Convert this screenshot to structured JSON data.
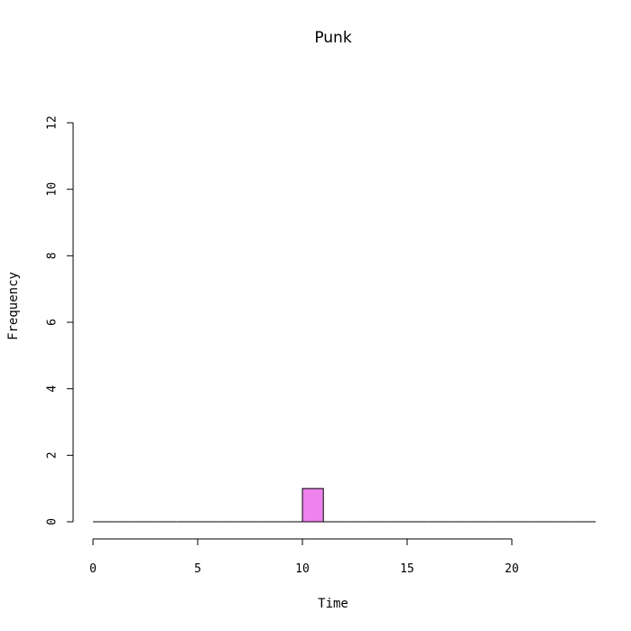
{
  "chart_data": {
    "type": "bar",
    "title": "Punk",
    "xlabel": "Time",
    "ylabel": "Frequency",
    "xlim": [
      -0.5,
      24
    ],
    "ylim": [
      0,
      12
    ],
    "x_axis_ticks": [
      0,
      5,
      10,
      15,
      20
    ],
    "y_axis_ticks": [
      0,
      2,
      4,
      6,
      8,
      10,
      12
    ],
    "bin_width": 1,
    "bins": [
      {
        "start": 0,
        "end": 1,
        "count": 0
      },
      {
        "start": 1,
        "end": 2,
        "count": 0
      },
      {
        "start": 2,
        "end": 3,
        "count": 0
      },
      {
        "start": 3,
        "end": 4,
        "count": 0
      },
      {
        "start": 4,
        "end": 5,
        "count": 0
      },
      {
        "start": 5,
        "end": 6,
        "count": 0
      },
      {
        "start": 6,
        "end": 7,
        "count": 0
      },
      {
        "start": 7,
        "end": 8,
        "count": 0
      },
      {
        "start": 8,
        "end": 9,
        "count": 0
      },
      {
        "start": 9,
        "end": 10,
        "count": 0
      },
      {
        "start": 10,
        "end": 11,
        "count": 1
      },
      {
        "start": 11,
        "end": 12,
        "count": 0
      },
      {
        "start": 12,
        "end": 13,
        "count": 0
      },
      {
        "start": 13,
        "end": 14,
        "count": 0
      },
      {
        "start": 14,
        "end": 15,
        "count": 0
      },
      {
        "start": 15,
        "end": 16,
        "count": 0
      },
      {
        "start": 16,
        "end": 17,
        "count": 0
      },
      {
        "start": 17,
        "end": 18,
        "count": 0
      },
      {
        "start": 18,
        "end": 19,
        "count": 0
      },
      {
        "start": 19,
        "end": 20,
        "count": 0
      },
      {
        "start": 20,
        "end": 21,
        "count": 0
      },
      {
        "start": 21,
        "end": 22,
        "count": 0
      },
      {
        "start": 22,
        "end": 23,
        "count": 0
      },
      {
        "start": 23,
        "end": 24,
        "count": 0
      }
    ],
    "bar_fill_color": "#ee82ee",
    "bar_stroke_color": "#000000",
    "grid": false,
    "legend": "none"
  }
}
